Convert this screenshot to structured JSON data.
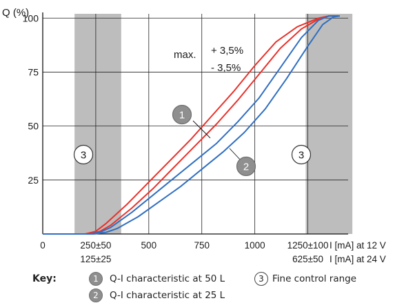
{
  "chart_data": {
    "type": "line",
    "ylabel": "Q (%)",
    "y_ticks": [
      "25",
      "50",
      "75",
      "100"
    ],
    "ylim": [
      0,
      102
    ],
    "xlim": [
      0,
      1440
    ],
    "x_tick_labels": [
      {
        "x": 0,
        "label": "0"
      },
      {
        "x": 250,
        "label": "250±50",
        "label2": "125±25"
      },
      {
        "x": 500,
        "label": "500"
      },
      {
        "x": 750,
        "label": "750"
      },
      {
        "x": 1000,
        "label": "1000"
      },
      {
        "x": 1250,
        "label": "1250±100",
        "label2": "625±50"
      }
    ],
    "x_axis_unit_12v": "I [mA] at 12 V",
    "x_axis_unit_24v": "I [mA] at 24 V",
    "grid": true,
    "shaded_ranges": [
      {
        "from": 150,
        "to": 370,
        "marker": "3"
      },
      {
        "from": 1240,
        "to": 1460,
        "marker": "3"
      }
    ],
    "annotation": {
      "max_label": "max.",
      "plus": "+ 3,5%",
      "minus": "- 3,5%"
    },
    "series": [
      {
        "marker": "1",
        "color": "#e8312a",
        "lines": [
          {
            "x": [
              0,
              200,
              250,
              300,
              400,
              500,
              600,
              700,
              800,
              900,
              1000,
              1100,
              1200,
              1300,
              1350,
              1400
            ],
            "y": [
              0,
              0,
              1.2,
              5,
              14,
              24,
              34,
              44,
              55,
              66,
              78,
              89,
              96,
              100,
              101,
              101
            ]
          },
          {
            "x": [
              0,
              220,
              270,
              320,
              420,
              520,
              620,
              720,
              820,
              920,
              1020,
              1120,
              1220,
              1300,
              1350,
              1400
            ],
            "y": [
              0,
              0,
              1.2,
              4,
              12,
              21,
              31,
              41,
              51,
              62,
              74,
              86,
              95,
              99.5,
              101,
              101
            ]
          }
        ]
      },
      {
        "marker": "2",
        "color": "#2f6ec1",
        "lines": [
          {
            "x": [
              0,
              220,
              270,
              320,
              420,
              520,
              620,
              720,
              820,
              920,
              1020,
              1120,
              1220,
              1300,
              1350,
              1400
            ],
            "y": [
              0,
              0,
              0.8,
              3,
              10,
              18,
              26,
              34,
              42,
              52,
              63,
              77,
              91,
              99,
              101,
              101
            ]
          },
          {
            "x": [
              0,
              240,
              300,
              350,
              450,
              550,
              650,
              750,
              850,
              950,
              1050,
              1150,
              1250,
              1320,
              1370,
              1400
            ],
            "y": [
              0,
              0,
              0.8,
              2.5,
              8,
              15,
              22,
              30,
              38,
              47,
              58,
              72,
              87,
              97,
              100.5,
              101
            ]
          }
        ]
      }
    ]
  },
  "key": {
    "title": "Key:",
    "items": [
      {
        "marker": "1",
        "text": "Q-I characteristic at 50 L"
      },
      {
        "marker": "2",
        "text": "Q-I characteristic at 25 L"
      },
      {
        "marker": "3",
        "text": "Fine control range"
      }
    ]
  }
}
